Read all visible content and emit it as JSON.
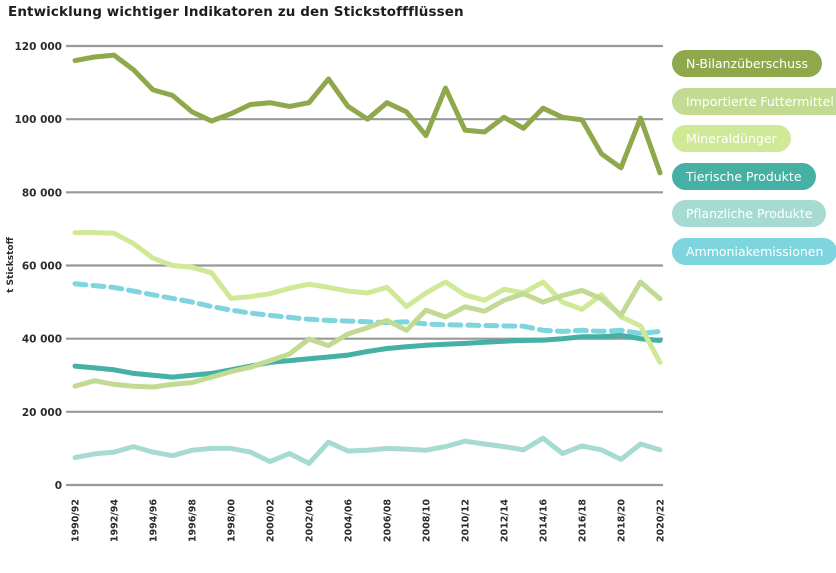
{
  "title": "Entwicklung wichtiger Indikatoren zu den Stickstoffflüssen",
  "colors": {
    "grid": "#999999",
    "text_dark": "#1d1d23",
    "axis_text": "#2b2b31"
  },
  "y_axis": {
    "unit_label": "t Stickstoff",
    "tick_labels": [
      "120 000",
      "100 000",
      "80 000",
      "60 000",
      "40 000",
      "20 000",
      "0"
    ],
    "tick_values": [
      120000,
      100000,
      80000,
      60000,
      40000,
      20000,
      0
    ]
  },
  "legend": [
    {
      "label": "N-Bilanzüberschuss",
      "color": "#8fa84c"
    },
    {
      "label": "Importierte Futtermittel",
      "color": "#c3da93"
    },
    {
      "label": "Mineraldünger",
      "color": "#cfe996"
    },
    {
      "label": "Tierische Produkte",
      "color": "#45b1a4"
    },
    {
      "label": "Pflanzliche Produkte",
      "color": "#a7dbd2"
    },
    {
      "label": "Ammoniakemissionen",
      "color": "#7ed5dd"
    }
  ],
  "chart_data": {
    "type": "line",
    "title": "Entwicklung wichtiger Indikatoren zu den Stickstoffflüssen",
    "xlabel": "",
    "ylabel": "t Stickstoff",
    "ylim": [
      0,
      120000
    ],
    "grid": "horizontal",
    "legend_position": "right",
    "x_tick_labels": [
      "1990/92",
      "1992/94",
      "1994/96",
      "1996/98",
      "1998/00",
      "2000/02",
      "2002/04",
      "2004/06",
      "2006/08",
      "2008/10",
      "2010/12",
      "2012/14",
      "2014/16",
      "2016/18",
      "2018/20",
      "2020/22"
    ],
    "x_tick_every_nth_point": 2,
    "categories": [
      "1990/92",
      "1991/93",
      "1992/94",
      "1993/95",
      "1994/96",
      "1995/97",
      "1996/98",
      "1997/99",
      "1998/00",
      "1999/01",
      "2000/02",
      "2001/03",
      "2002/04",
      "2003/05",
      "2004/06",
      "2005/07",
      "2006/08",
      "2007/09",
      "2008/10",
      "2009/11",
      "2010/12",
      "2011/13",
      "2012/14",
      "2013/15",
      "2014/16",
      "2015/17",
      "2016/18",
      "2017/19",
      "2018/20",
      "2019/21",
      "2020/22"
    ],
    "series": [
      {
        "name": "N-Bilanzüberschuss",
        "color": "#8fa84c",
        "style": "solid",
        "values": [
          116000,
          117000,
          117500,
          113500,
          108000,
          106500,
          102000,
          99500,
          101500,
          104000,
          104500,
          103500,
          104500,
          111000,
          103500,
          100000,
          104500,
          102000,
          95500,
          108500,
          97000,
          96500,
          100500,
          97500,
          103000,
          100500,
          99800,
          90500,
          86700,
          100300,
          85300
        ]
      },
      {
        "name": "Importierte Futtermittel",
        "color": "#c3da93",
        "style": "solid",
        "values": [
          27000,
          28500,
          27500,
          27000,
          26800,
          27500,
          28000,
          29500,
          31000,
          32200,
          34000,
          35800,
          39900,
          38100,
          41300,
          43000,
          45000,
          42300,
          47800,
          45900,
          48700,
          47500,
          50500,
          52300,
          50000,
          51800,
          53200,
          50900,
          46400,
          55500,
          50900
        ]
      },
      {
        "name": "Mineraldünger",
        "color": "#cfe996",
        "style": "solid",
        "values": [
          69000,
          69000,
          68800,
          66000,
          62000,
          60000,
          59500,
          58000,
          51000,
          51500,
          52300,
          53800,
          54900,
          54000,
          53000,
          52500,
          54000,
          48800,
          52500,
          55500,
          52000,
          50500,
          53500,
          52500,
          55500,
          50000,
          48000,
          52000,
          46000,
          43500,
          33500
        ]
      },
      {
        "name": "Tierische Produkte",
        "color": "#45b1a4",
        "style": "solid",
        "values": [
          32500,
          32000,
          31500,
          30500,
          30000,
          29500,
          30000,
          30500,
          31500,
          32500,
          33500,
          34000,
          34500,
          35000,
          35500,
          36500,
          37300,
          37800,
          38200,
          38500,
          38700,
          39000,
          39300,
          39500,
          39600,
          40000,
          40500,
          40500,
          40900,
          40000,
          39500
        ]
      },
      {
        "name": "Pflanzliche Produkte",
        "color": "#a7dbd2",
        "style": "solid",
        "values": [
          7500,
          8500,
          9000,
          10500,
          9000,
          8000,
          9500,
          10000,
          10000,
          9000,
          6400,
          8600,
          5900,
          11700,
          9300,
          9500,
          10000,
          9800,
          9500,
          10500,
          12000,
          11200,
          10500,
          9600,
          12800,
          8600,
          10700,
          9600,
          7000,
          11200,
          9600
        ]
      },
      {
        "name": "Ammoniakemissionen",
        "color": "#7ed5dd",
        "style": "dashed",
        "values": [
          55000,
          54500,
          54000,
          53000,
          52000,
          51000,
          50000,
          48800,
          47800,
          47000,
          46400,
          45800,
          45300,
          45000,
          44800,
          44600,
          44400,
          44600,
          44000,
          43800,
          43700,
          43600,
          43500,
          43400,
          42300,
          42000,
          42300,
          42000,
          42300,
          41400,
          42000
        ]
      }
    ]
  }
}
